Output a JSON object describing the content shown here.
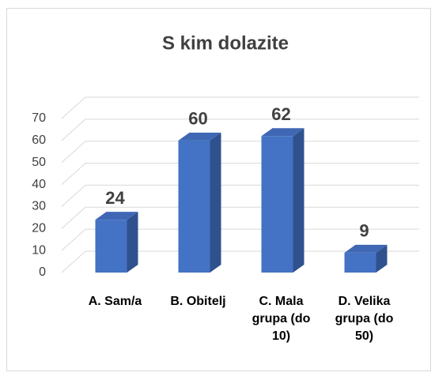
{
  "chart_data": {
    "type": "bar3d",
    "title": "S kim dolazite",
    "categories": [
      "A. Sam/a",
      "B. Obitelj",
      "C. Mala grupa (do 10)",
      "D. Velika grupa (do 50)"
    ],
    "values": [
      24,
      60,
      62,
      9
    ],
    "color": "#4472c4",
    "ylim": [
      0,
      70
    ],
    "yticks": [
      0,
      10,
      20,
      30,
      40,
      50,
      60,
      70
    ],
    "grid": true
  }
}
